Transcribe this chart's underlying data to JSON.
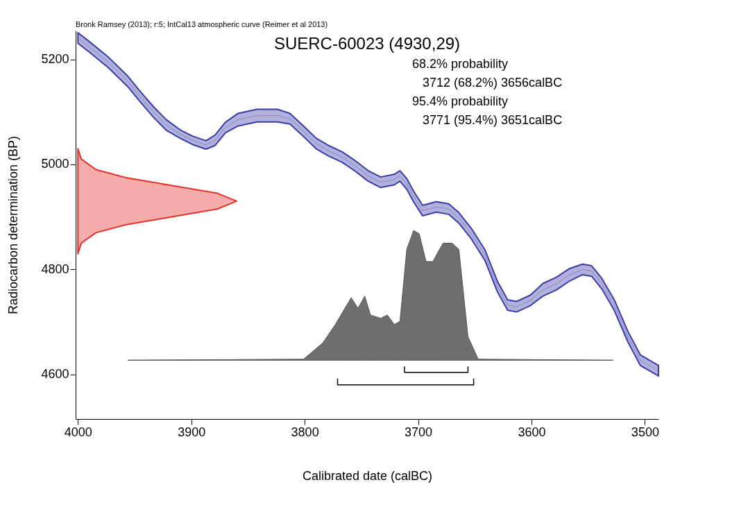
{
  "chart_data": {
    "type": "line",
    "title": "SUERC-60023 (4930,29)",
    "xlabel": "Calibrated date (calBC)",
    "ylabel": "Radiocarbon determination (BP)",
    "annotations": [
      "Bronk Ramsey (2013); r:5; IntCal13 atmospheric curve (Reimer et al 2013)",
      "68.2% probability",
      "3712 (68.2%) 3656calBC",
      "95.4% probability",
      "3771 (95.4%) 3651calBC"
    ],
    "xlim": [
      4002,
      3488
    ],
    "ylim": [
      4515,
      5255
    ],
    "xticks": [
      4000,
      3900,
      3800,
      3700,
      3600,
      3500
    ],
    "yticks": [
      4600,
      4800,
      5000,
      5200
    ],
    "grid": false,
    "series": [
      {
        "color": "#3b3ba8",
        "x": [
          4000,
          3990,
          3973,
          3956,
          3945,
          3933,
          3922,
          3910,
          3899,
          3887,
          3879,
          3870,
          3859,
          3842,
          3824,
          3813,
          3801,
          3790,
          3779,
          3767,
          3756,
          3744,
          3733,
          3721,
          3716,
          3710,
          3704,
          3696,
          3684,
          3673,
          3664,
          3653,
          3641,
          3630,
          3621,
          3613,
          3601,
          3590,
          3578,
          3567,
          3555,
          3547,
          3538,
          3527,
          3515,
          3504,
          3488
        ],
        "values": [
          5241,
          5224,
          5194,
          5158,
          5129,
          5099,
          5075,
          5058,
          5046,
          5037,
          5046,
          5070,
          5085,
          5093,
          5093,
          5087,
          5063,
          5040,
          5026,
          5014,
          4998,
          4978,
          4966,
          4971,
          4978,
          4963,
          4939,
          4912,
          4919,
          4915,
          4898,
          4868,
          4827,
          4767,
          4732,
          4729,
          4741,
          4761,
          4773,
          4789,
          4800,
          4797,
          4773,
          4732,
          4672,
          4627,
          4607
        ],
        "lower": [
          5231,
          5214,
          5184,
          5148,
          5119,
          5089,
          5065,
          5050,
          5038,
          5029,
          5036,
          5060,
          5073,
          5081,
          5081,
          5077,
          5053,
          5030,
          5016,
          5004,
          4988,
          4968,
          4956,
          4961,
          4968,
          4953,
          4929,
          4902,
          4909,
          4905,
          4888,
          4858,
          4817,
          4757,
          4722,
          4719,
          4731,
          4749,
          4761,
          4777,
          4790,
          4787,
          4763,
          4722,
          4662,
          4617,
          4597
        ],
        "upper": [
          5251,
          5234,
          5204,
          5168,
          5139,
          5109,
          5085,
          5066,
          5054,
          5045,
          5056,
          5080,
          5097,
          5105,
          5105,
          5097,
          5073,
          5050,
          5036,
          5024,
          5008,
          4988,
          4976,
          4981,
          4988,
          4973,
          4949,
          4922,
          4929,
          4925,
          4908,
          4878,
          4837,
          4777,
          4742,
          4739,
          4751,
          4773,
          4785,
          4801,
          4810,
          4807,
          4783,
          4742,
          4682,
          4637,
          4617
        ]
      },
      {
        "type": "area",
        "color": "#e8302c",
        "x": [
          4000,
          3997,
          3984,
          3958,
          3915,
          3877,
          3860,
          3877,
          3915,
          3958,
          3984,
          3997,
          4000
        ],
        "values": [
          5030,
          5010,
          4990,
          4975,
          4959,
          4945,
          4930,
          4915,
          4901,
          4885,
          4870,
          4850,
          4830
        ]
      },
      {
        "type": "area",
        "color": "#6e6e6e",
        "x": [
          3956,
          3801,
          3784,
          3773,
          3759,
          3753,
          3747,
          3742,
          3733,
          3727,
          3721,
          3716,
          3710,
          3704,
          3699,
          3693,
          3687,
          3678,
          3670,
          3664,
          3656,
          3647,
          3528
        ],
        "values": [
          4627,
          4629,
          4660,
          4695,
          4746,
          4726,
          4749,
          4713,
          4707,
          4713,
          4695,
          4701,
          4838,
          4874,
          4868,
          4815,
          4815,
          4850,
          4850,
          4838,
          4672,
          4629,
          4627
        ]
      },
      {
        "color": "#000000",
        "x": [
          3712,
          3712,
          3656,
          3656
        ],
        "values": [
          4615,
          4604,
          4604,
          4615
        ]
      },
      {
        "color": "#000000",
        "x": [
          3771,
          3771,
          3651,
          3651
        ],
        "values": [
          4592,
          4580,
          4580,
          4592
        ]
      }
    ]
  }
}
